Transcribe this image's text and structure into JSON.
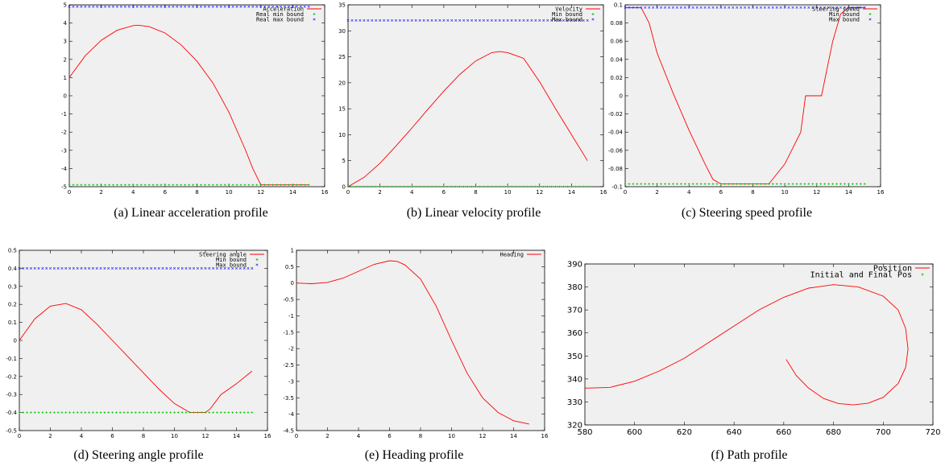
{
  "colors": {
    "plot_bg": "#f0f0f0",
    "red": "#ff0000",
    "green": "#00c000",
    "blue": "#3030ff"
  },
  "panels": [
    {
      "caption": "(a) Linear acceleration profile"
    },
    {
      "caption": "(b) Linear velocity profile"
    },
    {
      "caption": "(c) Steering speed profile"
    },
    {
      "caption": "(d) Steering angle profile"
    },
    {
      "caption": "(e) Heading profile"
    },
    {
      "caption": "(f) Path profile"
    }
  ],
  "chart_data": [
    {
      "type": "line",
      "xlim": [
        0,
        16
      ],
      "ylim": [
        -5,
        5
      ],
      "xticks": [
        "0",
        "2",
        "4",
        "6",
        "8",
        "10",
        "12",
        "14",
        "16"
      ],
      "yticks": [
        "5",
        "4",
        "3",
        "2",
        "1",
        "0",
        "-1",
        "-2",
        "-3",
        "-4",
        "-5"
      ],
      "legend": [
        "Acceleration",
        "Real min bound",
        "Real max bound"
      ],
      "series": [
        {
          "name": "Acceleration",
          "style": "line",
          "color": "red",
          "x": [
            0,
            1,
            2,
            3,
            4,
            4.3,
            5,
            6,
            7,
            8,
            9,
            10,
            11,
            11.5,
            12,
            15
          ],
          "y": [
            1,
            2.2,
            3.05,
            3.6,
            3.86,
            3.88,
            3.8,
            3.45,
            2.8,
            1.9,
            0.7,
            -0.9,
            -2.9,
            -4,
            -4.9,
            -4.9
          ]
        },
        {
          "name": "Real min bound",
          "style": "points",
          "color": "green",
          "x_range": [
            0,
            15
          ],
          "value": -4.9
        },
        {
          "name": "Real max bound",
          "style": "points",
          "color": "blue",
          "x_range": [
            0,
            15
          ],
          "value": 4.9
        }
      ]
    },
    {
      "type": "line",
      "xlim": [
        0,
        16
      ],
      "ylim": [
        0,
        35
      ],
      "xticks": [
        "0",
        "2",
        "4",
        "6",
        "8",
        "10",
        "12",
        "14",
        "16"
      ],
      "yticks": [
        "35",
        "30",
        "25",
        "20",
        "15",
        "10",
        "5",
        "0"
      ],
      "legend": [
        "Velocity",
        "Min bound",
        "Max bound"
      ],
      "series": [
        {
          "name": "Velocity",
          "style": "line",
          "color": "red",
          "x": [
            0,
            1,
            2,
            3,
            4,
            5,
            6,
            7,
            8,
            9,
            9.5,
            10,
            11,
            12,
            13,
            14,
            15
          ],
          "y": [
            0,
            1.8,
            4.5,
            7.8,
            11.3,
            14.9,
            18.4,
            21.6,
            24.2,
            25.8,
            26,
            25.8,
            24.7,
            20.2,
            15,
            10,
            5
          ]
        },
        {
          "name": "Min bound",
          "style": "points",
          "color": "green",
          "x_range": [
            0,
            15
          ],
          "value": 0
        },
        {
          "name": "Max bound",
          "style": "points",
          "color": "blue",
          "x_range": [
            0,
            15
          ],
          "value": 32
        }
      ]
    },
    {
      "type": "line",
      "xlim": [
        0,
        16
      ],
      "ylim": [
        -0.1,
        0.1
      ],
      "xticks": [
        "0",
        "2",
        "4",
        "6",
        "8",
        "10",
        "12",
        "14",
        "16"
      ],
      "yticks": [
        "0.1",
        "0.08",
        "0.06",
        "0.04",
        "0.02",
        "0",
        "-0.02",
        "-0.04",
        "-0.06",
        "-0.08",
        "-0.1"
      ],
      "legend": [
        "Steering speed",
        "Min bound",
        "Max bound"
      ],
      "series": [
        {
          "name": "Steering speed",
          "style": "line",
          "color": "red",
          "x": [
            0,
            1,
            1.5,
            2,
            3,
            4,
            5,
            5.5,
            6,
            7,
            8,
            9,
            10,
            11,
            11.3,
            12,
            12.3,
            13,
            13.5,
            14,
            15
          ],
          "y": [
            0.097,
            0.097,
            0.08,
            0.047,
            0.003,
            -0.038,
            -0.075,
            -0.092,
            -0.097,
            -0.097,
            -0.097,
            -0.097,
            -0.075,
            -0.04,
            0,
            0,
            0,
            0.06,
            0.09,
            0.097,
            0.097
          ]
        },
        {
          "name": "Min bound",
          "style": "points",
          "color": "green",
          "x_range": [
            0,
            15
          ],
          "value": -0.097
        },
        {
          "name": "Max bound",
          "style": "points",
          "color": "blue",
          "x_range": [
            0,
            15
          ],
          "value": 0.097
        }
      ]
    },
    {
      "type": "line",
      "xlim": [
        0,
        16
      ],
      "ylim": [
        -0.5,
        0.5
      ],
      "xticks": [
        "0",
        "2",
        "4",
        "6",
        "8",
        "10",
        "12",
        "14",
        "16"
      ],
      "yticks": [
        "0.5",
        "0.4",
        "0.3",
        "0.2",
        "0.1",
        "0",
        "-0.1",
        "-0.2",
        "-0.3",
        "-0.4",
        "-0.5"
      ],
      "legend": [
        "Steering angle",
        "Min bound",
        "Max bound"
      ],
      "series": [
        {
          "name": "Steering angle",
          "style": "line",
          "color": "red",
          "x": [
            0,
            1,
            2,
            3,
            4,
            5,
            6,
            7,
            8,
            9,
            10,
            11,
            12,
            12.3,
            13,
            14,
            15
          ],
          "y": [
            0,
            0.12,
            0.19,
            0.205,
            0.17,
            0.09,
            0,
            -0.09,
            -0.18,
            -0.27,
            -0.35,
            -0.4,
            -0.4,
            -0.38,
            -0.3,
            -0.24,
            -0.17
          ]
        },
        {
          "name": "Min bound",
          "style": "points",
          "color": "green",
          "x_range": [
            0,
            15
          ],
          "value": -0.4
        },
        {
          "name": "Max bound",
          "style": "points",
          "color": "blue",
          "x_range": [
            0,
            15
          ],
          "value": 0.4
        }
      ]
    },
    {
      "type": "line",
      "xlim": [
        0,
        16
      ],
      "ylim": [
        -4.5,
        1
      ],
      "xticks": [
        "0",
        "2",
        "4",
        "6",
        "8",
        "10",
        "12",
        "14",
        "16"
      ],
      "yticks": [
        "1",
        "0.5",
        "0",
        "-0.5",
        "-1",
        "-1.5",
        "-2",
        "-2.5",
        "-3",
        "-3.5",
        "-4",
        "-4.5"
      ],
      "legend": [
        "Heading"
      ],
      "series": [
        {
          "name": "Heading",
          "style": "line",
          "color": "red",
          "x": [
            0,
            1,
            2,
            3,
            4,
            5,
            6,
            6.5,
            7,
            8,
            9,
            10,
            11,
            12,
            13,
            14,
            15
          ],
          "y": [
            0,
            -0.02,
            0.02,
            0.15,
            0.36,
            0.57,
            0.68,
            0.66,
            0.55,
            0.12,
            -0.7,
            -1.75,
            -2.75,
            -3.5,
            -3.95,
            -4.2,
            -4.3
          ]
        }
      ]
    },
    {
      "type": "line",
      "xlim": [
        580,
        720
      ],
      "ylim": [
        320,
        390
      ],
      "xticks": [
        "580",
        "600",
        "620",
        "640",
        "660",
        "680",
        "700",
        "720"
      ],
      "yticks": [
        "390",
        "380",
        "370",
        "360",
        "350",
        "340",
        "330",
        "320"
      ],
      "legend": [
        "Position",
        "Initial and Final Pos"
      ],
      "series": [
        {
          "name": "Position",
          "style": "line",
          "color": "red",
          "x": [
            580,
            590,
            600,
            610,
            620,
            630,
            640,
            650,
            660,
            670,
            680,
            690,
            700,
            706,
            709,
            710,
            709,
            706,
            700,
            694,
            688,
            682,
            676,
            670,
            665,
            661
          ],
          "y": [
            336,
            336.3,
            339,
            343.5,
            349,
            356,
            363,
            370,
            375.5,
            379.5,
            381,
            380,
            376,
            370,
            362,
            353,
            345,
            338,
            332,
            329.5,
            328.7,
            329.3,
            331.5,
            336,
            341.5,
            348.5
          ]
        },
        {
          "name": "Initial and Final Pos",
          "style": "points",
          "color": "green",
          "x": [],
          "y": []
        }
      ]
    }
  ]
}
